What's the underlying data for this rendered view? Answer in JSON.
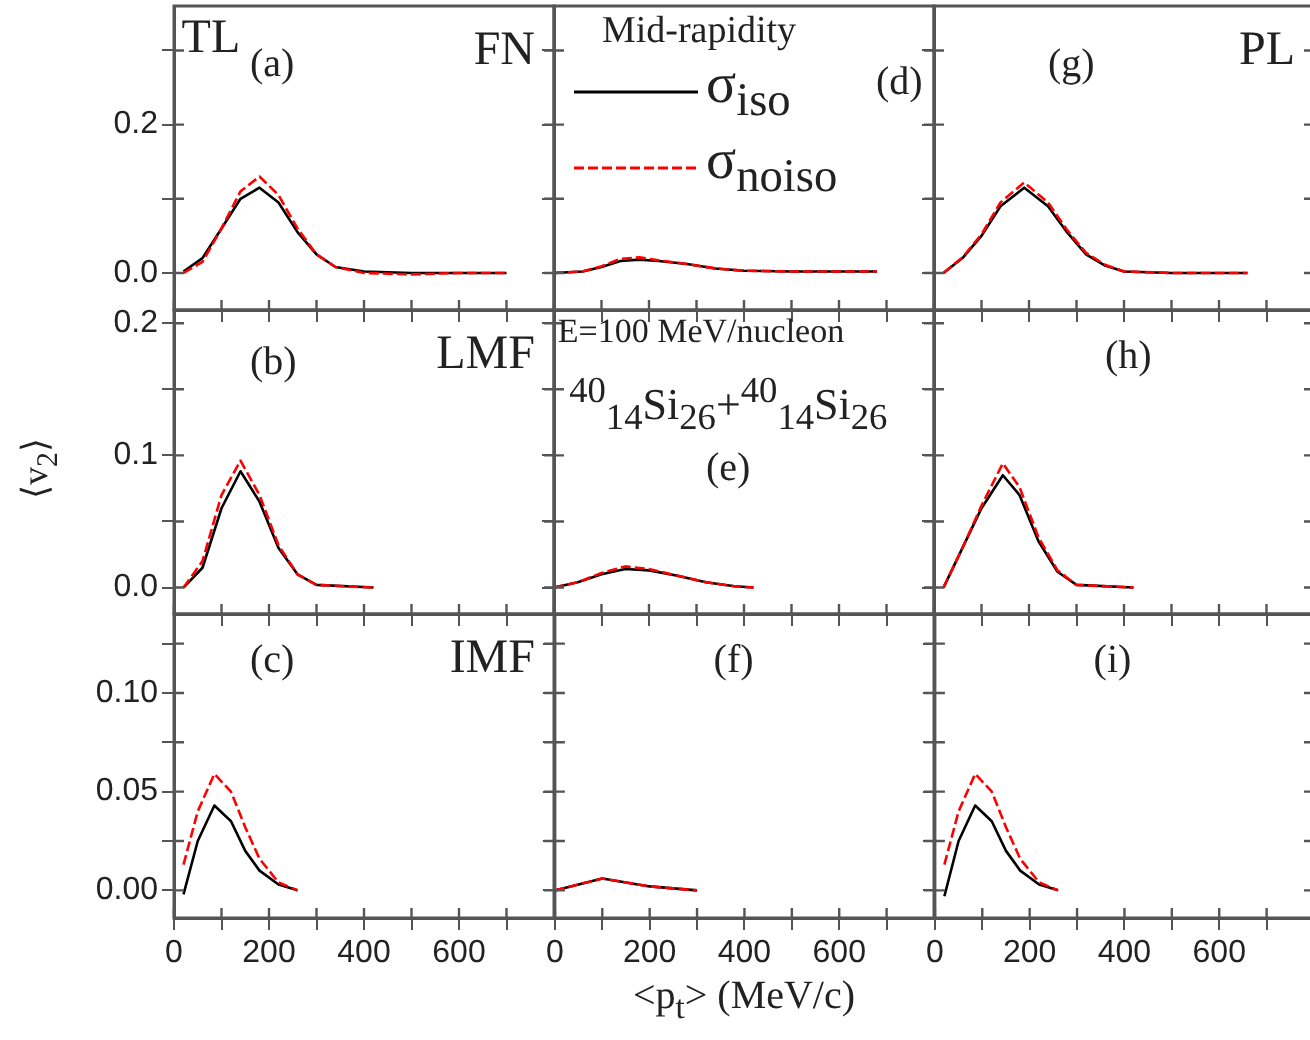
{
  "chart_data": [
    {
      "type": "line",
      "xlim": [
        0,
        800
      ],
      "xticks": [
        {
          "value": 0,
          "label": null
        },
        {
          "value": 100,
          "label": null
        },
        {
          "value": 200,
          "label": null
        },
        {
          "value": 300,
          "label": null
        },
        {
          "value": 400,
          "label": null
        },
        {
          "value": 500,
          "label": null
        },
        {
          "value": 600,
          "label": null
        },
        {
          "value": 700,
          "label": null
        }
      ],
      "ylim": [
        -0.05,
        0.36
      ],
      "yticks": [
        {
          "value": 0,
          "label": "0.0"
        },
        {
          "value": 0.1,
          "label": null
        },
        0.2,
        {
          "value": 0.3,
          "label": null
        }
      ],
      "tick_labels": "y",
      "grid": false,
      "marker": "none",
      "annotations": [
        "TL",
        "(a)",
        "FN"
      ],
      "x": [
        20,
        60,
        100,
        140,
        180,
        220,
        260,
        300,
        340,
        400,
        500,
        600,
        700
      ],
      "series": [
        {
          "color": "#000000",
          "line_style": "solid",
          "values": [
            0.002,
            0.02,
            0.06,
            0.1,
            0.115,
            0.095,
            0.055,
            0.025,
            0.008,
            0.002,
            0,
            0,
            0
          ]
        },
        {
          "color": "#ff0000",
          "line_style": "dashed",
          "values": [
            0,
            0.015,
            0.06,
            0.11,
            0.13,
            0.105,
            0.06,
            0.025,
            0.008,
            0,
            -0.002,
            0,
            0
          ]
        }
      ]
    },
    {
      "type": "line",
      "xlim": [
        0,
        800
      ],
      "xticks": [
        {
          "value": 0,
          "label": null
        },
        {
          "value": 100,
          "label": null
        },
        {
          "value": 200,
          "label": null
        },
        {
          "value": 300,
          "label": null
        },
        {
          "value": 400,
          "label": null
        },
        {
          "value": 500,
          "label": null
        },
        {
          "value": 600,
          "label": null
        },
        {
          "value": 700,
          "label": null
        }
      ],
      "ylim": [
        -0.05,
        0.36
      ],
      "yticks": [
        {
          "value": 0,
          "label": null
        },
        {
          "value": 0.1,
          "label": null
        },
        {
          "value": 0.2,
          "label": null
        },
        {
          "value": 0.3,
          "label": null
        }
      ],
      "tick_labels": false,
      "grid": false,
      "marker": "none",
      "legend": "top",
      "legend_title": "Mid-rapidity",
      "annotations": [
        "(d)"
      ],
      "x": [
        0,
        60,
        100,
        140,
        180,
        220,
        280,
        340,
        400,
        500,
        600,
        680
      ],
      "series": [
        {
          "name": "σ$_{iso}$",
          "color": "#000000",
          "line_style": "solid",
          "values": [
            0,
            0.002,
            0.008,
            0.016,
            0.018,
            0.016,
            0.012,
            0.006,
            0.003,
            0.002,
            0.002,
            0.002
          ]
        },
        {
          "name": "σ$_{noiso}$",
          "color": "#ff0000",
          "line_style": "dashed",
          "values": [
            0,
            0.002,
            0.009,
            0.019,
            0.021,
            0.017,
            0.012,
            0.006,
            0.003,
            0.002,
            0.002,
            0.002
          ]
        }
      ]
    },
    {
      "type": "line",
      "xlim": [
        0,
        800
      ],
      "xticks": [
        {
          "value": 0,
          "label": null
        },
        {
          "value": 100,
          "label": null
        },
        {
          "value": 200,
          "label": null
        },
        {
          "value": 300,
          "label": null
        },
        {
          "value": 400,
          "label": null
        },
        {
          "value": 500,
          "label": null
        },
        {
          "value": 600,
          "label": null
        },
        {
          "value": 700,
          "label": null
        }
      ],
      "ylim": [
        -0.05,
        0.36
      ],
      "yticks": [
        {
          "value": 0,
          "label": null
        },
        {
          "value": 0.1,
          "label": null
        },
        {
          "value": 0.2,
          "label": null
        },
        {
          "value": 0.3,
          "label": null
        }
      ],
      "tick_labels": false,
      "grid": false,
      "marker": "none",
      "annotations": [
        "(g)",
        "PL"
      ],
      "x": [
        20,
        60,
        100,
        140,
        190,
        240,
        280,
        320,
        360,
        400,
        500,
        660
      ],
      "series": [
        {
          "color": "#000000",
          "line_style": "solid",
          "values": [
            0,
            0.02,
            0.05,
            0.09,
            0.115,
            0.09,
            0.055,
            0.025,
            0.01,
            0.002,
            0,
            0
          ]
        },
        {
          "color": "#ff0000",
          "line_style": "dashed",
          "values": [
            0,
            0.021,
            0.052,
            0.095,
            0.122,
            0.095,
            0.058,
            0.027,
            0.011,
            0.002,
            0,
            0
          ]
        }
      ]
    },
    {
      "type": "line",
      "xlim": [
        0,
        800
      ],
      "xticks": [
        {
          "value": 0,
          "label": null
        },
        {
          "value": 100,
          "label": null
        },
        {
          "value": 200,
          "label": null
        },
        {
          "value": 300,
          "label": null
        },
        {
          "value": 400,
          "label": null
        },
        {
          "value": 500,
          "label": null
        },
        {
          "value": 600,
          "label": null
        },
        {
          "value": 700,
          "label": null
        }
      ],
      "ylim": [
        -0.02,
        0.21
      ],
      "yticks": [
        {
          "value": 0,
          "label": "0.0"
        },
        {
          "value": 0.05,
          "label": null
        },
        0.1,
        {
          "value": 0.15,
          "label": null
        },
        0.2
      ],
      "tick_labels": "y",
      "grid": false,
      "marker": "none",
      "ylabel": "⟨v$_{2}$⟩",
      "annotations": [
        "(b)",
        "LMF"
      ],
      "x": [
        20,
        60,
        100,
        140,
        180,
        220,
        260,
        300,
        420
      ],
      "series": [
        {
          "color": "#000000",
          "line_style": "solid",
          "values": [
            0,
            0.015,
            0.06,
            0.088,
            0.065,
            0.03,
            0.01,
            0.002,
            0
          ]
        },
        {
          "color": "#ff0000",
          "line_style": "dashed",
          "values": [
            0,
            0.02,
            0.07,
            0.096,
            0.07,
            0.032,
            0.01,
            0.002,
            0
          ]
        }
      ]
    },
    {
      "type": "line",
      "xlim": [
        0,
        800
      ],
      "xticks": [
        {
          "value": 0,
          "label": null
        },
        {
          "value": 100,
          "label": null
        },
        {
          "value": 200,
          "label": null
        },
        {
          "value": 300,
          "label": null
        },
        {
          "value": 400,
          "label": null
        },
        {
          "value": 500,
          "label": null
        },
        {
          "value": 600,
          "label": null
        },
        {
          "value": 700,
          "label": null
        }
      ],
      "ylim": [
        -0.02,
        0.21
      ],
      "yticks": [
        {
          "value": 0,
          "label": null
        },
        {
          "value": 0.05,
          "label": null
        },
        {
          "value": 0.1,
          "label": null
        },
        {
          "value": 0.15,
          "label": null
        },
        {
          "value": 0.2,
          "label": null
        }
      ],
      "tick_labels": false,
      "grid": false,
      "marker": "none",
      "annotations": [
        "E=100 MeV/nucleon",
        "$^{40}$$_{14}$Si$_{26}$+$^{40}$$_{14}$Si$_{26}$",
        "(e)"
      ],
      "x": [
        0,
        50,
        100,
        150,
        200,
        260,
        320,
        380,
        420
      ],
      "series": [
        {
          "color": "#000000",
          "line_style": "solid",
          "values": [
            0,
            0.004,
            0.01,
            0.014,
            0.013,
            0.009,
            0.004,
            0.001,
            0
          ]
        },
        {
          "color": "#ff0000",
          "line_style": "dashed",
          "values": [
            0,
            0.004,
            0.011,
            0.016,
            0.014,
            0.009,
            0.004,
            0.001,
            0
          ]
        }
      ]
    },
    {
      "type": "line",
      "xlim": [
        0,
        800
      ],
      "xticks": [
        {
          "value": 0,
          "label": null
        },
        {
          "value": 100,
          "label": null
        },
        {
          "value": 200,
          "label": null
        },
        {
          "value": 300,
          "label": null
        },
        {
          "value": 400,
          "label": null
        },
        {
          "value": 500,
          "label": null
        },
        {
          "value": 600,
          "label": null
        },
        {
          "value": 700,
          "label": null
        }
      ],
      "ylim": [
        -0.02,
        0.21
      ],
      "yticks": [
        {
          "value": 0,
          "label": null
        },
        {
          "value": 0.05,
          "label": null
        },
        {
          "value": 0.1,
          "label": null
        },
        {
          "value": 0.15,
          "label": null
        },
        {
          "value": 0.2,
          "label": null
        }
      ],
      "tick_labels": false,
      "grid": false,
      "marker": "none",
      "annotations": [
        "(h)"
      ],
      "x": [
        20,
        60,
        100,
        145,
        180,
        220,
        260,
        300,
        420
      ],
      "series": [
        {
          "color": "#000000",
          "line_style": "solid",
          "values": [
            0,
            0.03,
            0.06,
            0.085,
            0.07,
            0.035,
            0.012,
            0.002,
            0
          ]
        },
        {
          "color": "#ff0000",
          "line_style": "dashed",
          "values": [
            0,
            0.03,
            0.062,
            0.094,
            0.076,
            0.038,
            0.013,
            0.002,
            0
          ]
        }
      ]
    },
    {
      "type": "line",
      "xlim": [
        0,
        800
      ],
      "xticks": [
        0,
        {
          "value": 100,
          "label": null
        },
        200,
        {
          "value": 300,
          "label": null
        },
        400,
        {
          "value": 500,
          "label": null
        },
        600,
        {
          "value": 700,
          "label": null
        }
      ],
      "ylim": [
        -0.014,
        0.14
      ],
      "yticks": [
        {
          "value": 0,
          "label": "0.00"
        },
        {
          "value": 0.025,
          "label": null
        },
        0.05,
        {
          "value": 0.075,
          "label": null
        },
        {
          "value": 0.1,
          "label": "0.10"
        },
        {
          "value": 0.125,
          "label": null
        }
      ],
      "grid": false,
      "marker": "none",
      "annotations": [
        "(c)",
        "IMF"
      ],
      "x": [
        20,
        50,
        85,
        120,
        150,
        180,
        220,
        260
      ],
      "series": [
        {
          "color": "#000000",
          "line_style": "solid",
          "values": [
            -0.002,
            0.025,
            0.043,
            0.035,
            0.02,
            0.01,
            0.003,
            0
          ]
        },
        {
          "color": "#ff0000",
          "line_style": "dashed",
          "values": [
            0.013,
            0.04,
            0.059,
            0.05,
            0.032,
            0.016,
            0.004,
            0
          ]
        }
      ]
    },
    {
      "type": "line",
      "xlim": [
        0,
        800
      ],
      "xticks": [
        0,
        {
          "value": 100,
          "label": null
        },
        200,
        {
          "value": 300,
          "label": null
        },
        400,
        {
          "value": 500,
          "label": null
        },
        600,
        {
          "value": 700,
          "label": null
        }
      ],
      "ylim": [
        -0.014,
        0.14
      ],
      "yticks": [
        {
          "value": 0,
          "label": null
        },
        {
          "value": 0.025,
          "label": null
        },
        {
          "value": 0.05,
          "label": null
        },
        {
          "value": 0.075,
          "label": null
        },
        {
          "value": 0.1,
          "label": null
        },
        {
          "value": 0.125,
          "label": null
        }
      ],
      "tick_labels": "x",
      "grid": false,
      "marker": "none",
      "xlabel": "<p$_{t}$> (MeV/c)",
      "annotations": [
        "(f)"
      ],
      "x": [
        0,
        50,
        100,
        150,
        200,
        250,
        300
      ],
      "series": [
        {
          "color": "#000000",
          "line_style": "solid",
          "values": [
            0,
            0.003,
            0.006,
            0.004,
            0.002,
            0.001,
            0
          ]
        },
        {
          "color": "#ff0000",
          "line_style": "dashed",
          "values": [
            0,
            0.003,
            0.006,
            0.004,
            0.002,
            0.001,
            0
          ]
        }
      ]
    },
    {
      "type": "line",
      "xlim": [
        0,
        800
      ],
      "xticks": [
        0,
        {
          "value": 100,
          "label": null
        },
        200,
        {
          "value": 300,
          "label": null
        },
        400,
        {
          "value": 500,
          "label": null
        },
        600,
        {
          "value": 700,
          "label": null
        }
      ],
      "ylim": [
        -0.014,
        0.14
      ],
      "yticks": [
        {
          "value": 0,
          "label": null
        },
        {
          "value": 0.025,
          "label": null
        },
        {
          "value": 0.05,
          "label": null
        },
        {
          "value": 0.075,
          "label": null
        },
        {
          "value": 0.1,
          "label": null
        },
        {
          "value": 0.125,
          "label": null
        }
      ],
      "tick_labels": "x",
      "grid": false,
      "marker": "none",
      "annotations": [
        "(i)"
      ],
      "x": [
        20,
        50,
        85,
        120,
        150,
        180,
        220,
        260
      ],
      "series": [
        {
          "color": "#000000",
          "line_style": "solid",
          "values": [
            -0.003,
            0.025,
            0.043,
            0.035,
            0.02,
            0.01,
            0.003,
            0
          ]
        },
        {
          "color": "#ff0000",
          "line_style": "dashed",
          "values": [
            0.013,
            0.04,
            0.059,
            0.05,
            0.032,
            0.016,
            0.004,
            0
          ]
        }
      ]
    }
  ]
}
